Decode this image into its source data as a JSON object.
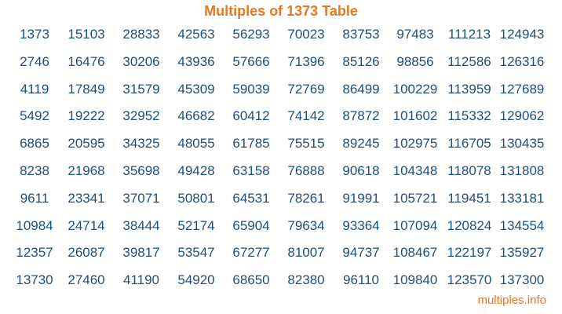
{
  "title": "Multiples of 1373 Table",
  "footer": "multiples.info",
  "colors": {
    "title": "#e87722",
    "numbers": "#1f4e79",
    "footer": "#e87722"
  },
  "table": {
    "rows": [
      [
        "1373",
        "15103",
        "28833",
        "42563",
        "56293",
        "70023",
        "83753",
        "97483",
        "111213",
        "124943"
      ],
      [
        "2746",
        "16476",
        "30206",
        "43936",
        "57666",
        "71396",
        "85126",
        "98856",
        "112586",
        "126316"
      ],
      [
        "4119",
        "17849",
        "31579",
        "45309",
        "59039",
        "72769",
        "86499",
        "100229",
        "113959",
        "127689"
      ],
      [
        "5492",
        "19222",
        "32952",
        "46682",
        "60412",
        "74142",
        "87872",
        "101602",
        "115332",
        "129062"
      ],
      [
        "6865",
        "20595",
        "34325",
        "48055",
        "61785",
        "75515",
        "89245",
        "102975",
        "116705",
        "130435"
      ],
      [
        "8238",
        "21968",
        "35698",
        "49428",
        "63158",
        "76888",
        "90618",
        "104348",
        "118078",
        "131808"
      ],
      [
        "9611",
        "23341",
        "37071",
        "50801",
        "64531",
        "78261",
        "91991",
        "105721",
        "119451",
        "133181"
      ],
      [
        "10984",
        "24714",
        "38444",
        "52174",
        "65904",
        "79634",
        "93364",
        "107094",
        "120824",
        "134554"
      ],
      [
        "12357",
        "26087",
        "39817",
        "53547",
        "67277",
        "81007",
        "94737",
        "108467",
        "122197",
        "135927"
      ],
      [
        "13730",
        "27460",
        "41190",
        "54920",
        "68650",
        "82380",
        "96110",
        "109840",
        "123570",
        "137300"
      ]
    ]
  }
}
